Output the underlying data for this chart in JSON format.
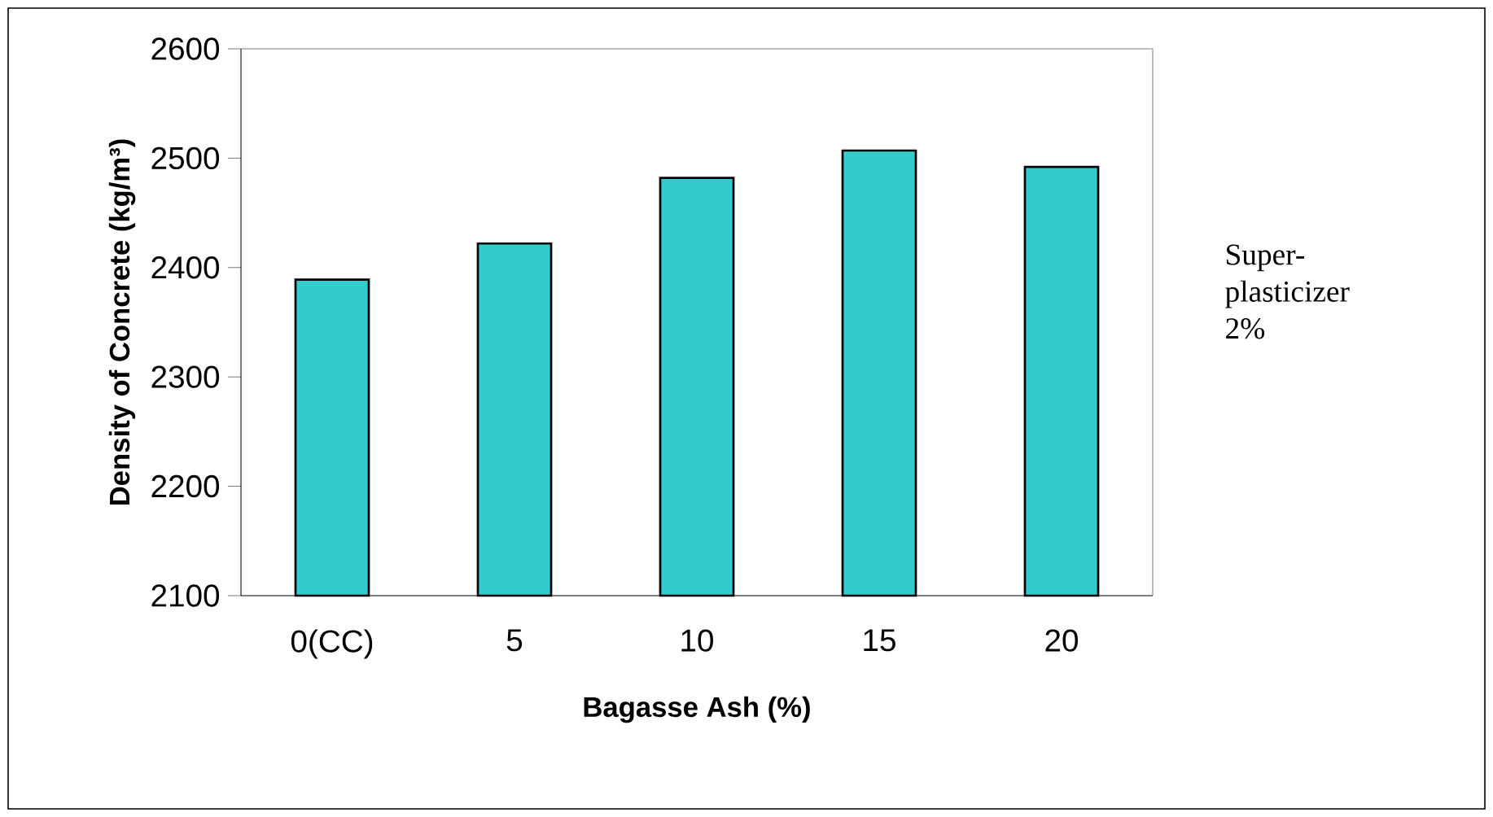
{
  "chart_data": {
    "type": "bar",
    "xlabel": "Bagasse Ash (%)",
    "ylabel": "Density of Concrete (kg/m³)",
    "categories": [
      "0(CC)",
      "5",
      "10",
      "15",
      "20"
    ],
    "values": [
      2389,
      2422,
      2482,
      2507,
      2492
    ],
    "color": "#33cccc",
    "ylim": [
      2100,
      2600
    ],
    "yticks": [
      2100,
      2200,
      2300,
      2400,
      2500,
      2600
    ],
    "annotations": [
      "Super-plasticizer 2%"
    ]
  }
}
